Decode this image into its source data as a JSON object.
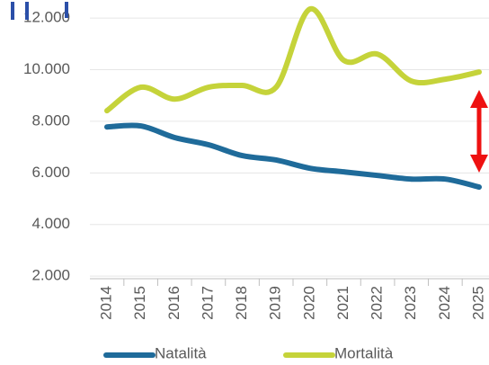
{
  "chart_data": {
    "type": "line",
    "categories": [
      "2014",
      "2015",
      "2016",
      "2017",
      "2018",
      "2019",
      "2020",
      "2021",
      "2022",
      "2023",
      "2024",
      "2025"
    ],
    "series": [
      {
        "name": "Natalità",
        "color": "#1f6b9a",
        "values": [
          7780,
          7820,
          7370,
          7090,
          6670,
          6500,
          6180,
          6040,
          5900,
          5760,
          5760,
          5450
        ]
      },
      {
        "name": "Mortalità",
        "color": "#c5d33a",
        "values": [
          8410,
          9320,
          8860,
          9320,
          9390,
          9320,
          12350,
          10360,
          10600,
          9560,
          9630,
          9910
        ]
      }
    ],
    "ylim": [
      1900,
      12700
    ],
    "yticks": [
      {
        "value": 2000,
        "label": "2.000"
      },
      {
        "value": 4000,
        "label": "4.000"
      },
      {
        "value": 6000,
        "label": "6.000"
      },
      {
        "value": 8000,
        "label": "8.000"
      },
      {
        "value": 10000,
        "label": "10.000"
      },
      {
        "value": 12000,
        "label": "12.000"
      }
    ],
    "grid": true
  }
}
